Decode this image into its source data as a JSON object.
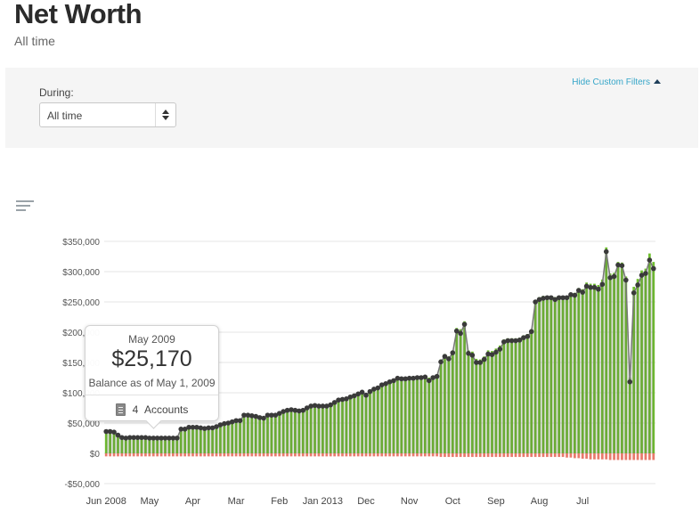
{
  "page": {
    "title": "Net Worth",
    "subtitle": "All time"
  },
  "filters": {
    "hide_link": "Hide Custom Filters",
    "during_label": "During:",
    "during_value": "All time"
  },
  "icons": {
    "chart_menu": "chart-options-icon",
    "accounts": "document-list-icon",
    "select_arrows": "up-down-arrows-icon"
  },
  "tooltip": {
    "month": "May 2009",
    "value": "$25,170",
    "caption": "Balance as of May 1, 2009",
    "accounts_count": "4",
    "accounts_label": "Accounts"
  },
  "colors": {
    "asset_bar": "#6fbe2f",
    "debt_bar": "#e8796b",
    "net_worth_line": "#3a3a3a",
    "link": "#36a6c9"
  },
  "chart_data": {
    "type": "bar",
    "title": "",
    "xlabel": "",
    "ylabel": "",
    "ylim": [
      -50000,
      350000
    ],
    "y_ticks": [
      {
        "value": 350000,
        "label": "$350,000"
      },
      {
        "value": 300000,
        "label": "$300,000"
      },
      {
        "value": 250000,
        "label": "$250,000"
      },
      {
        "value": 200000,
        "label": "$200,000"
      },
      {
        "value": 150000,
        "label": "$150,000"
      },
      {
        "value": 100000,
        "label": "$100,000"
      },
      {
        "value": 50000,
        "label": "$50,000"
      },
      {
        "value": 0,
        "label": "$0"
      },
      {
        "value": -50000,
        "label": "-$50,000"
      }
    ],
    "x_ticks": [
      {
        "index": 0,
        "label": "Jun 2008"
      },
      {
        "index": 11,
        "label": "May"
      },
      {
        "index": 22,
        "label": "Apr"
      },
      {
        "index": 33,
        "label": "Mar"
      },
      {
        "index": 44,
        "label": "Feb"
      },
      {
        "index": 55,
        "label": "Jan 2013"
      },
      {
        "index": 66,
        "label": "Dec"
      },
      {
        "index": 77,
        "label": "Nov"
      },
      {
        "index": 88,
        "label": "Oct"
      },
      {
        "index": 99,
        "label": "Sep"
      },
      {
        "index": 110,
        "label": "Aug"
      },
      {
        "index": 121,
        "label": "Jul"
      }
    ],
    "grid": true,
    "legend": "none",
    "series": [
      {
        "key": "assets",
        "values": [
          36000,
          36000,
          35000,
          31000,
          28000,
          27000,
          28000,
          28000,
          28000,
          28000,
          28000,
          27000,
          27000,
          27000,
          27000,
          27000,
          27000,
          27000,
          27000,
          43000,
          43000,
          46000,
          46000,
          46000,
          45000,
          44000,
          45000,
          45000,
          47000,
          50000,
          52000,
          53000,
          55000,
          57000,
          56000,
          65000,
          65000,
          64000,
          63000,
          61000,
          60000,
          65000,
          65000,
          65000,
          68000,
          71000,
          73000,
          74000,
          73000,
          72000,
          73000,
          77000,
          80000,
          81000,
          80000,
          80000,
          80000,
          82000,
          86000,
          90000,
          91000,
          92000,
          95000,
          97000,
          100000,
          103000,
          98000,
          104000,
          108000,
          110000,
          115000,
          117000,
          120000,
          122000,
          126000,
          125000,
          125000,
          126000,
          126000,
          127000,
          127000,
          128000,
          125000,
          128000,
          130000,
          155000,
          164000,
          160000,
          170000,
          207000,
          205000,
          218000,
          170000,
          168000,
          156000,
          155000,
          160000,
          170000,
          169000,
          173000,
          178000,
          188000,
          190000,
          190000,
          190000,
          191000,
          195000,
          197000,
          205000,
          253000,
          258000,
          260000,
          260000,
          260000,
          258000,
          260000,
          260000,
          260000,
          265000,
          265000,
          273000,
          271000,
          282000,
          280000,
          280000,
          278000,
          287000,
          340000,
          297000,
          298000,
          316000,
          315000,
          292000,
          125000,
          275000,
          288000,
          302000,
          305000,
          330000,
          316000
        ]
      },
      {
        "key": "debts",
        "values": [
          -5000,
          -5000,
          -5000,
          -5000,
          -5000,
          -5000,
          -5000,
          -5000,
          -5000,
          -5000,
          -5000,
          -5000,
          -5000,
          -5000,
          -5000,
          -5000,
          -5000,
          -5000,
          -5000,
          -5000,
          -5000,
          -5000,
          -5000,
          -5000,
          -5000,
          -5000,
          -5000,
          -5000,
          -5000,
          -5000,
          -5000,
          -5000,
          -5000,
          -5000,
          -5000,
          -5000,
          -5000,
          -5000,
          -5000,
          -5000,
          -5000,
          -5000,
          -5000,
          -5000,
          -5000,
          -5000,
          -5000,
          -5000,
          -5000,
          -5000,
          -5000,
          -5000,
          -5000,
          -5000,
          -5000,
          -5000,
          -5000,
          -5000,
          -5000,
          -5000,
          -5000,
          -5000,
          -5000,
          -5000,
          -5000,
          -5000,
          -5000,
          -5000,
          -5000,
          -5000,
          -5000,
          -5000,
          -5000,
          -5000,
          -5000,
          -5000,
          -5000,
          -5000,
          -5000,
          -5000,
          -5000,
          -5000,
          -5000,
          -5000,
          -5000,
          -6000,
          -6000,
          -6000,
          -6000,
          -6000,
          -6000,
          -6000,
          -6000,
          -6000,
          -6000,
          -6000,
          -6000,
          -6000,
          -6000,
          -6000,
          -6000,
          -6000,
          -6000,
          -6000,
          -6000,
          -6000,
          -6000,
          -6000,
          -6000,
          -6000,
          -6000,
          -6000,
          -6000,
          -6000,
          -6000,
          -6000,
          -6000,
          -7000,
          -7000,
          -8000,
          -8000,
          -9000,
          -9000,
          -10000,
          -10000,
          -10000,
          -10000,
          -10000,
          -11000,
          -11000,
          -11000,
          -11000,
          -11000,
          -11000,
          -11000,
          -11000,
          -11000,
          -11000,
          -11000,
          -11000
        ]
      },
      {
        "key": "net_worth",
        "values": [
          36000,
          36000,
          35000,
          30000,
          26000,
          25170,
          26000,
          26000,
          26000,
          26000,
          26000,
          25170,
          25170,
          25170,
          25170,
          25170,
          25170,
          25170,
          25170,
          40000,
          40000,
          43000,
          43000,
          43000,
          42000,
          41000,
          42000,
          42000,
          44000,
          47000,
          49000,
          50000,
          52000,
          54000,
          54000,
          63000,
          63000,
          62000,
          61000,
          59000,
          58000,
          63000,
          63000,
          63000,
          66000,
          69000,
          71000,
          72000,
          71000,
          70000,
          71000,
          75000,
          78000,
          79000,
          78000,
          78000,
          78000,
          80000,
          84000,
          88000,
          89000,
          90000,
          93000,
          95000,
          98000,
          101000,
          96000,
          102000,
          106000,
          108000,
          113000,
          115000,
          118000,
          120000,
          124000,
          123000,
          123000,
          124000,
          124000,
          125000,
          125000,
          126000,
          120000,
          125000,
          127000,
          151000,
          160000,
          156000,
          166000,
          202000,
          198000,
          213000,
          165000,
          162000,
          150000,
          150000,
          155000,
          164000,
          163000,
          167000,
          172000,
          184000,
          186000,
          186000,
          186000,
          187000,
          191000,
          193000,
          201000,
          250000,
          254000,
          256000,
          257000,
          257000,
          254000,
          257000,
          257000,
          257000,
          262000,
          261000,
          269000,
          266000,
          276000,
          274000,
          274000,
          271000,
          279000,
          333000,
          290000,
          292000,
          311000,
          310000,
          286000,
          118000,
          265000,
          278000,
          294000,
          297000,
          319000,
          305000
        ]
      }
    ]
  }
}
